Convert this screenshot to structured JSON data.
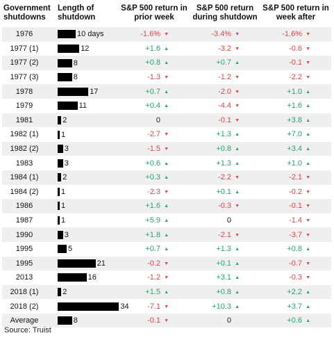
{
  "headers": {
    "shutdown": "Government shutdowns",
    "length": "Length of shutdown",
    "prior": "S&P 500 return in prior week",
    "during": "S&P 500 return during shutdown",
    "after": "S&P 500 return in week after"
  },
  "rows": [
    {
      "label": "1976",
      "days": 10,
      "days_text": "10 days",
      "prior": "-1.6%",
      "during": "-3.4%",
      "after": "-1.6%"
    },
    {
      "label": "1977 (1)",
      "days": 12,
      "days_text": "12",
      "prior": "+1.6",
      "during": "-3.2",
      "after": "-0.6"
    },
    {
      "label": "1977 (2)",
      "days": 8,
      "days_text": "8",
      "prior": "+0.8",
      "during": "+0.7",
      "after": "-0.1"
    },
    {
      "label": "1977 (3)",
      "days": 8,
      "days_text": "8",
      "prior": "-1.3",
      "during": "-1.2",
      "after": "-2.2"
    },
    {
      "label": "1978",
      "days": 17,
      "days_text": "17",
      "prior": "+0.7",
      "during": "-2.0",
      "after": "+1.0"
    },
    {
      "label": "1979",
      "days": 11,
      "days_text": "11",
      "prior": "+0.4",
      "during": "-4.4",
      "after": "+1.6"
    },
    {
      "label": "1981",
      "days": 2,
      "days_text": "2",
      "prior": "0",
      "during": "-0.1",
      "after": "+3.8"
    },
    {
      "label": "1982 (1)",
      "days": 1,
      "days_text": "1",
      "prior": "-2.7",
      "during": "+1.3",
      "after": "+7.0"
    },
    {
      "label": "1982 (2)",
      "days": 3,
      "days_text": "3",
      "prior": "-1.5",
      "during": "+0.8",
      "after": "+3.4"
    },
    {
      "label": "1983",
      "days": 3,
      "days_text": "3",
      "prior": "+0.6",
      "during": "+1.3",
      "after": "+1.0"
    },
    {
      "label": "1984 (1)",
      "days": 2,
      "days_text": "2",
      "prior": "+0.3",
      "during": "-2.2",
      "after": "-2.1"
    },
    {
      "label": "1984 (2)",
      "days": 1,
      "days_text": "1",
      "prior": "-2.3",
      "during": "+0.1",
      "after": "-0.2"
    },
    {
      "label": "1986",
      "days": 1,
      "days_text": "1",
      "prior": "+1.6",
      "during": "-0.3",
      "after": "-0.1"
    },
    {
      "label": "1987",
      "days": 1,
      "days_text": "1",
      "prior": "+5.9",
      "during": "0",
      "after": "-1.4"
    },
    {
      "label": "1990",
      "days": 3,
      "days_text": "3",
      "prior": "+1.8",
      "during": "-2.1",
      "after": "-3.7"
    },
    {
      "label": "1995",
      "days": 5,
      "days_text": "5",
      "prior": "+0.7",
      "during": "+1.3",
      "after": "+0.8"
    },
    {
      "label": "1995",
      "days": 21,
      "days_text": "21",
      "prior": "-0.2",
      "during": "+0.1",
      "after": "-0.7"
    },
    {
      "label": "2013",
      "days": 16,
      "days_text": "16",
      "prior": "-1.2",
      "during": "+3.1",
      "after": "-0.3"
    },
    {
      "label": "2018 (1)",
      "days": 2,
      "days_text": "2",
      "prior": "+1.5",
      "during": "+0.8",
      "after": "+2.2"
    },
    {
      "label": "2018 (2)",
      "days": 34,
      "days_text": "34",
      "prior": "-7.1",
      "during": "+10.3",
      "after": "+3.7"
    },
    {
      "label": "Average",
      "days": 8,
      "days_text": "8",
      "prior": "-0.1",
      "during": "0",
      "after": "+0.6"
    }
  ],
  "source": "Source: Truist",
  "colors": {
    "positive": "#2aa36b",
    "negative": "#d9484b",
    "stripe": "#efefef",
    "bar": "#000000"
  },
  "icons": {
    "up": "up-triangle-icon",
    "down": "down-triangle-icon"
  }
}
